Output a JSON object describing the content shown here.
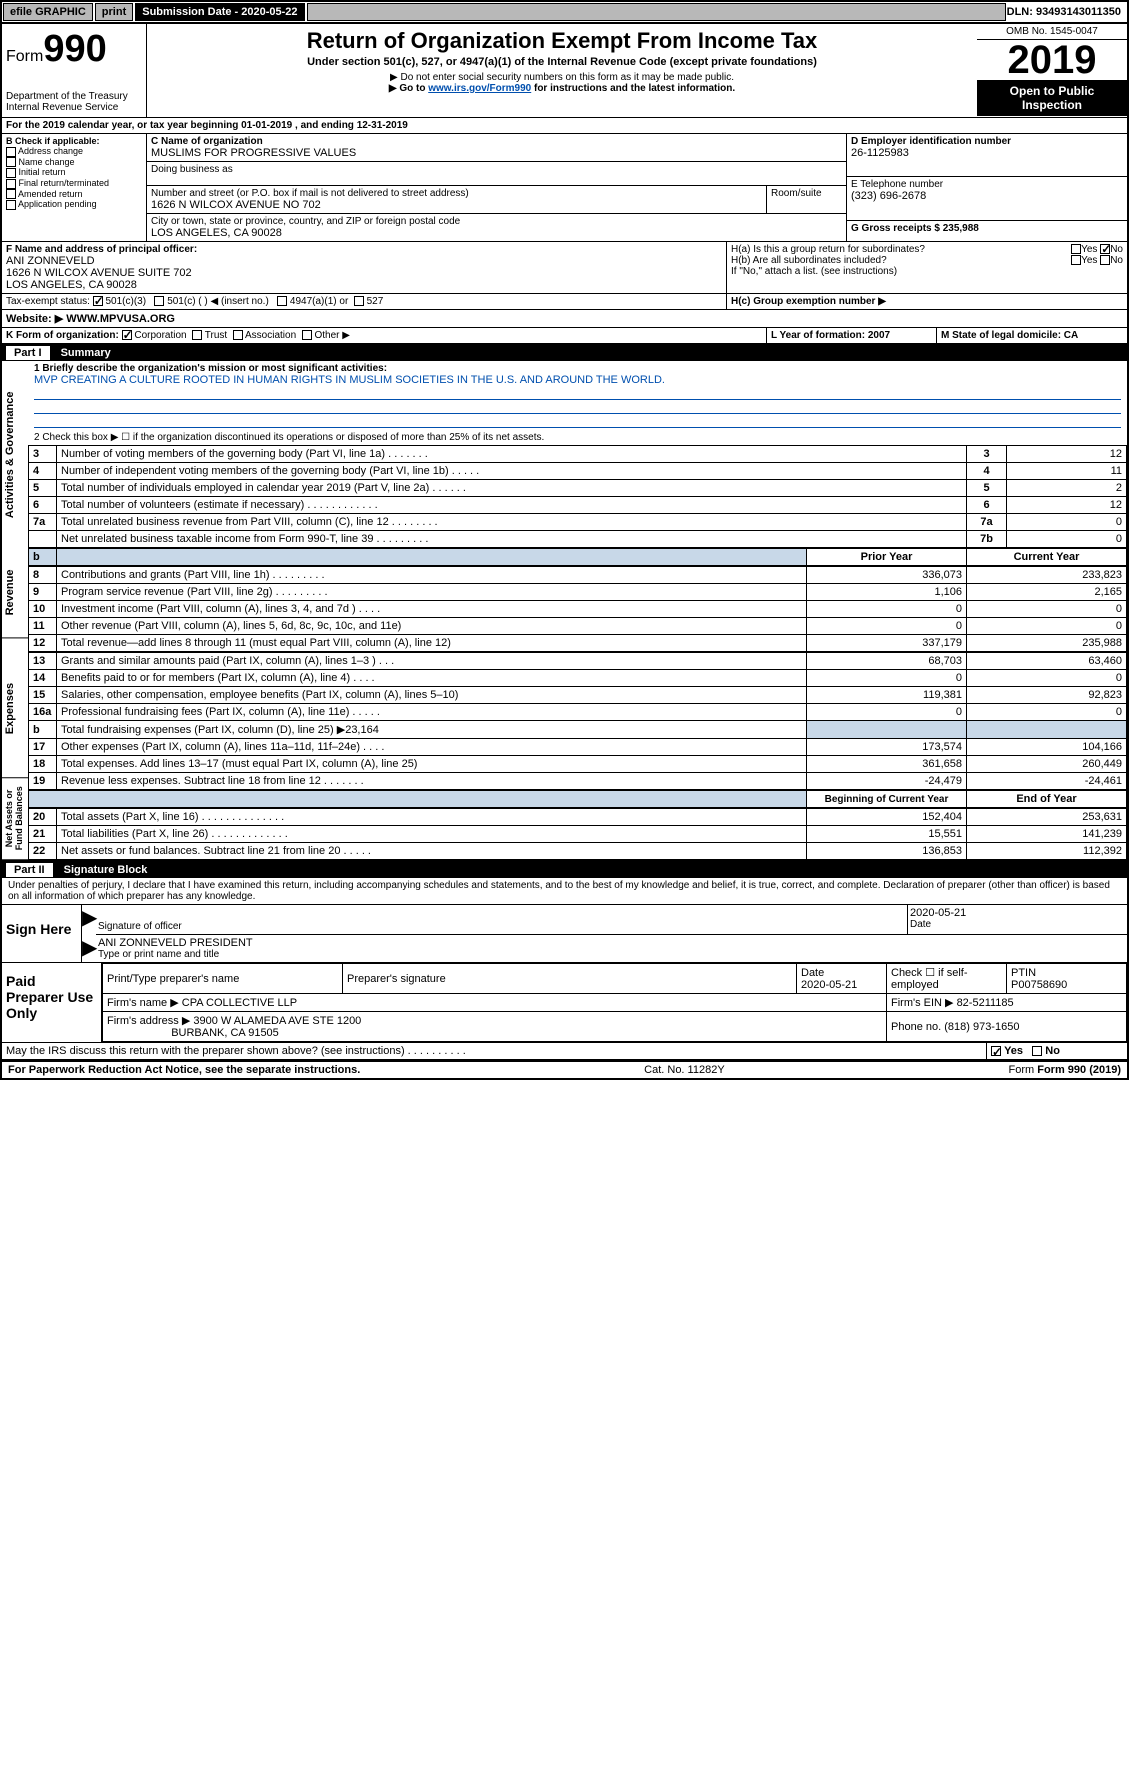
{
  "topbar": {
    "efile": "efile GRAPHIC",
    "print": "print",
    "sub_label": "Submission Date - 2020-05-22",
    "dln": "DLN: 93493143011350"
  },
  "header": {
    "form_prefix": "Form",
    "form_no": "990",
    "dept": "Department of the Treasury",
    "irs": "Internal Revenue Service",
    "title": "Return of Organization Exempt From Income Tax",
    "subtitle": "Under section 501(c), 527, or 4947(a)(1) of the Internal Revenue Code (except private foundations)",
    "note1": "▶ Do not enter social security numbers on this form as it may be made public.",
    "note2_pre": "▶ Go to ",
    "note2_link": "www.irs.gov/Form990",
    "note2_post": " for instructions and the latest information.",
    "omb": "OMB No. 1545-0047",
    "year": "2019",
    "otp1": "Open to Public",
    "otp2": "Inspection"
  },
  "period": {
    "line_a": "For the 2019 calendar year, or tax year beginning 01-01-2019   , and ending 12-31-2019"
  },
  "boxB": {
    "label": "B Check if applicable:",
    "items": [
      "Address change",
      "Name change",
      "Initial return",
      "Final return/terminated",
      "Amended return",
      "Application pending"
    ]
  },
  "boxC": {
    "label": "C Name of organization",
    "name": "MUSLIMS FOR PROGRESSIVE VALUES",
    "dba_label": "Doing business as",
    "addr_label": "Number and street (or P.O. box if mail is not delivered to street address)",
    "room_label": "Room/suite",
    "addr": "1626 N WILCOX AVENUE NO 702",
    "city_label": "City or town, state or province, country, and ZIP or foreign postal code",
    "city": "LOS ANGELES, CA  90028"
  },
  "boxD": {
    "label": "D Employer identification number",
    "value": "26-1125983"
  },
  "boxE": {
    "label": "E Telephone number",
    "value": "(323) 696-2678"
  },
  "boxG": {
    "label": "G Gross receipts $ 235,988"
  },
  "boxF": {
    "label": "F  Name and address of principal officer:",
    "name": "ANI ZONNEVELD",
    "addr1": "1626 N WILCOX AVENUE SUITE 702",
    "addr2": "LOS ANGELES, CA  90028"
  },
  "boxH": {
    "ha": "H(a)  Is this a group return for subordinates?",
    "hb": "H(b)  Are all subordinates included?",
    "hb_note": "If \"No,\" attach a list. (see instructions)",
    "hc": "H(c)  Group exemption number ▶",
    "yes": "Yes",
    "no": "No"
  },
  "boxI": {
    "label": "Tax-exempt status:",
    "opt1": "501(c)(3)",
    "opt2": "501(c) (   ) ◀ (insert no.)",
    "opt3": "4947(a)(1) or",
    "opt4": "527"
  },
  "boxJ": {
    "label": "Website: ▶",
    "value": "WWW.MPVUSA.ORG"
  },
  "boxK": {
    "label": "K Form of organization:",
    "corp": "Corporation",
    "trust": "Trust",
    "assoc": "Association",
    "other": "Other ▶"
  },
  "boxL": {
    "label": "L Year of formation: 2007"
  },
  "boxM": {
    "label": "M State of legal domicile: CA"
  },
  "part1": {
    "bar": "Summary",
    "part_label": "Part I",
    "vlabels": {
      "gov": "Activities & Governance",
      "rev": "Revenue",
      "exp": "Expenses",
      "net": "Net Assets or Fund Balances"
    },
    "q1_label": "1  Briefly describe the organization's mission or most significant activities:",
    "q1_text": "MVP CREATING A CULTURE ROOTED IN HUMAN RIGHTS IN MUSLIM SOCIETIES IN THE U.S. AND AROUND THE WORLD.",
    "q2": "2   Check this box ▶ ☐  if the organization discontinued its operations or disposed of more than 25% of its net assets.",
    "lines_gov": [
      {
        "n": "3",
        "t": "Number of voting members of the governing body (Part VI, line 1a)  .   .   .   .   .   .   .",
        "box": "3",
        "v": "12"
      },
      {
        "n": "4",
        "t": "Number of independent voting members of the governing body (Part VI, line 1b)  .   .   .   .   .",
        "box": "4",
        "v": "11"
      },
      {
        "n": "5",
        "t": "Total number of individuals employed in calendar year 2019 (Part V, line 2a)  .   .   .   .   .   .",
        "box": "5",
        "v": "2"
      },
      {
        "n": "6",
        "t": "Total number of volunteers (estimate if necessary)  .   .   .   .   .   .   .   .   .   .   .   .",
        "box": "6",
        "v": "12"
      },
      {
        "n": "7a",
        "t": "Total unrelated business revenue from Part VIII, column (C), line 12  .   .   .   .   .   .   .   .",
        "box": "7a",
        "v": "0"
      },
      {
        "n": "",
        "t": "Net unrelated business taxable income from Form 990-T, line 39  .   .   .   .   .   .   .   .   .",
        "box": "7b",
        "v": "0"
      }
    ],
    "col_prior": "Prior Year",
    "col_current": "Current Year",
    "lines_rev": [
      {
        "n": "8",
        "t": "Contributions and grants (Part VIII, line 1h)  .   .   .   .   .   .   .   .   .",
        "p": "336,073",
        "c": "233,823"
      },
      {
        "n": "9",
        "t": "Program service revenue (Part VIII, line 2g)  .   .   .   .   .   .   .   .   .",
        "p": "1,106",
        "c": "2,165"
      },
      {
        "n": "10",
        "t": "Investment income (Part VIII, column (A), lines 3, 4, and 7d )  .   .   .   .",
        "p": "0",
        "c": "0"
      },
      {
        "n": "11",
        "t": "Other revenue (Part VIII, column (A), lines 5, 6d, 8c, 9c, 10c, and 11e)",
        "p": "0",
        "c": "0"
      },
      {
        "n": "12",
        "t": "Total revenue—add lines 8 through 11 (must equal Part VIII, column (A), line 12)",
        "p": "337,179",
        "c": "235,988"
      }
    ],
    "lines_exp": [
      {
        "n": "13",
        "t": "Grants and similar amounts paid (Part IX, column (A), lines 1–3 )  .   .   .",
        "p": "68,703",
        "c": "63,460"
      },
      {
        "n": "14",
        "t": "Benefits paid to or for members (Part IX, column (A), line 4)  .   .   .   .",
        "p": "0",
        "c": "0"
      },
      {
        "n": "15",
        "t": "Salaries, other compensation, employee benefits (Part IX, column (A), lines 5–10)",
        "p": "119,381",
        "c": "92,823"
      },
      {
        "n": "16a",
        "t": "Professional fundraising fees (Part IX, column (A), line 11e)  .   .   .   .   .",
        "p": "0",
        "c": "0"
      },
      {
        "n": "b",
        "t": "Total fundraising expenses (Part IX, column (D), line 25) ▶23,164",
        "p": "",
        "c": "",
        "shade": true
      },
      {
        "n": "17",
        "t": "Other expenses (Part IX, column (A), lines 11a–11d, 11f–24e)  .   .   .   .",
        "p": "173,574",
        "c": "104,166"
      },
      {
        "n": "18",
        "t": "Total expenses. Add lines 13–17 (must equal Part IX, column (A), line 25)",
        "p": "361,658",
        "c": "260,449"
      },
      {
        "n": "19",
        "t": "Revenue less expenses. Subtract line 18 from line 12  .   .   .   .   .   .   .",
        "p": "-24,479",
        "c": "-24,461"
      }
    ],
    "col_begin": "Beginning of Current Year",
    "col_end": "End of Year",
    "lines_net": [
      {
        "n": "20",
        "t": "Total assets (Part X, line 16)  .   .   .   .   .   .   .   .   .   .   .   .   .   .",
        "p": "152,404",
        "c": "253,631"
      },
      {
        "n": "21",
        "t": "Total liabilities (Part X, line 26)  .   .   .   .   .   .   .   .   .   .   .   .   .",
        "p": "15,551",
        "c": "141,239"
      },
      {
        "n": "22",
        "t": "Net assets or fund balances. Subtract line 21 from line 20  .   .   .   .   .",
        "p": "136,853",
        "c": "112,392"
      }
    ]
  },
  "part2": {
    "part_label": "Part II",
    "bar": "Signature Block",
    "perjury": "Under penalties of perjury, I declare that I have examined this return, including accompanying schedules and statements, and to the best of my knowledge and belief, it is true, correct, and complete. Declaration of preparer (other than officer) is based on all information of which preparer has any knowledge.",
    "sign_here": "Sign Here",
    "sig_officer": "Signature of officer",
    "sig_date": "2020-05-21",
    "date_label": "Date",
    "officer_name": "ANI ZONNEVELD  PRESIDENT",
    "type_name": "Type or print name and title",
    "paid": "Paid Preparer Use Only",
    "prep_name_label": "Print/Type preparer's name",
    "prep_sig_label": "Preparer's signature",
    "prep_date_label": "Date",
    "prep_date": "2020-05-21",
    "check_self": "Check ☐ if self-employed",
    "ptin_label": "PTIN",
    "ptin": "P00758690",
    "firm_name_label": "Firm's name    ▶",
    "firm_name": "CPA COLLECTIVE LLP",
    "firm_ein_label": "Firm's EIN ▶",
    "firm_ein": "82-5211185",
    "firm_addr_label": "Firm's address ▶",
    "firm_addr1": "3900 W ALAMEDA AVE STE 1200",
    "firm_addr2": "BURBANK, CA  91505",
    "phone_label": "Phone no.",
    "phone": "(818) 973-1650",
    "discuss": "May the IRS discuss this return with the preparer shown above? (see instructions)  .   .   .   .   .   .   .   .   .   .",
    "yes": "Yes",
    "no": "No"
  },
  "footer": {
    "pra": "For Paperwork Reduction Act Notice, see the separate instructions.",
    "cat": "Cat. No. 11282Y",
    "form": "Form 990 (2019)"
  }
}
